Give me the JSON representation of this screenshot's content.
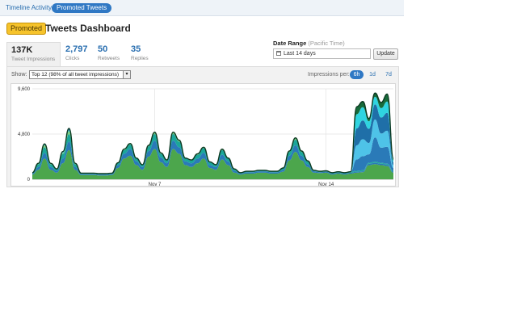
{
  "tabs": {
    "timeline": "Timeline Activity",
    "promoted": "Promoted Tweets"
  },
  "header": {
    "badge": "Promoted",
    "title": "Tweets Dashboard"
  },
  "stats": [
    {
      "value": "137K",
      "label": "Tweet Impressions"
    },
    {
      "value": "2,797",
      "label": "Clicks"
    },
    {
      "value": "50",
      "label": "Retweets"
    },
    {
      "value": "35",
      "label": "Replies"
    }
  ],
  "date_range": {
    "label": "Date Range",
    "timezone": "(Pacific Time)",
    "value": "Last 14 days",
    "update_label": "Update"
  },
  "controls": {
    "show_label": "Show:",
    "show_value": "Top 12 (98% of all tweet impressions)",
    "impressions_per_label": "Impressions per:",
    "periods": [
      "6h",
      "1d",
      "7d"
    ],
    "selected_period": "6h"
  },
  "colors": {
    "accent": "#2f78c4",
    "badge": "#f6c32b",
    "green": "#4ca64c",
    "teal": "#1aa69a",
    "blue": "#2a7ab8",
    "light_blue": "#4ec3e8",
    "cyan": "#2fd4e0",
    "dark_green": "#176b3a"
  },
  "chart_data": {
    "type": "area",
    "stacked": true,
    "ylim": [
      0,
      9600
    ],
    "yticks": [
      "0",
      "4,800",
      "9,600"
    ],
    "xticks": [
      {
        "label": "Nov 7",
        "x": 20
      },
      {
        "label": "Nov 14",
        "x": 48
      }
    ],
    "x": [
      0,
      1,
      2,
      3,
      4,
      5,
      6,
      7,
      8,
      9,
      10,
      11,
      12,
      13,
      14,
      15,
      16,
      17,
      18,
      19,
      20,
      21,
      22,
      23,
      24,
      25,
      26,
      27,
      28,
      29,
      30,
      31,
      32,
      33,
      34,
      35,
      36,
      37,
      38,
      39,
      40,
      41,
      42,
      43,
      44,
      45,
      46,
      47,
      48,
      49,
      50,
      51,
      52,
      53,
      54,
      55,
      56,
      57,
      58,
      59
    ],
    "series": [
      {
        "values": [
          500,
          1000,
          2200,
          1000,
          700,
          1700,
          3100,
          1000,
          450,
          450,
          450,
          400,
          400,
          450,
          1200,
          2200,
          2500,
          1500,
          1000,
          2400,
          3200,
          1800,
          1300,
          3200,
          2700,
          1500,
          1300,
          1700,
          2200,
          1200,
          1000,
          2100,
          1500,
          700,
          500,
          600,
          600,
          700,
          700,
          600,
          600,
          800,
          2000,
          2900,
          2000,
          1300,
          700,
          650,
          700,
          500,
          600,
          500,
          600,
          700,
          750,
          1500,
          1600,
          1500,
          1400,
          700
        ]
      },
      {
        "values": [
          100,
          300,
          600,
          300,
          200,
          500,
          900,
          300,
          100,
          100,
          100,
          100,
          100,
          100,
          300,
          500,
          700,
          400,
          300,
          600,
          900,
          500,
          400,
          900,
          700,
          400,
          400,
          500,
          600,
          300,
          300,
          500,
          400,
          200,
          100,
          150,
          150,
          150,
          150,
          150,
          150,
          200,
          500,
          700,
          500,
          300,
          150,
          100,
          100,
          100,
          100,
          100,
          100,
          100,
          100,
          150,
          150,
          150,
          150,
          100
        ]
      },
      {
        "values": [
          100,
          300,
          600,
          300,
          200,
          500,
          800,
          300,
          100,
          100,
          100,
          100,
          100,
          100,
          200,
          400,
          500,
          300,
          200,
          500,
          700,
          400,
          300,
          700,
          600,
          300,
          300,
          400,
          500,
          300,
          200,
          500,
          300,
          200,
          100,
          100,
          100,
          100,
          100,
          100,
          100,
          200,
          400,
          600,
          400,
          300,
          100,
          100,
          100,
          100,
          100,
          100,
          100,
          100,
          100,
          100,
          100,
          100,
          100,
          100
        ]
      },
      {
        "values": [
          0,
          100,
          200,
          100,
          0,
          100,
          300,
          100,
          0,
          0,
          0,
          0,
          0,
          0,
          50,
          100,
          100,
          50,
          50,
          100,
          200,
          100,
          50,
          200,
          150,
          50,
          50,
          100,
          100,
          50,
          50,
          100,
          50,
          0,
          0,
          0,
          0,
          0,
          0,
          0,
          0,
          0,
          100,
          200,
          100,
          50,
          0,
          0,
          0,
          0,
          0,
          0,
          0,
          0,
          0,
          0,
          0,
          0,
          0,
          0
        ]
      },
      {
        "values": [
          0,
          0,
          50,
          0,
          0,
          50,
          100,
          0,
          0,
          0,
          0,
          0,
          0,
          0,
          0,
          0,
          0,
          0,
          0,
          0,
          0,
          0,
          0,
          0,
          0,
          0,
          0,
          0,
          0,
          0,
          0,
          0,
          0,
          0,
          0,
          0,
          0,
          0,
          0,
          0,
          0,
          0,
          0,
          0,
          0,
          0,
          0,
          0,
          0,
          0,
          0,
          0,
          0,
          0,
          0,
          0,
          0,
          0,
          0,
          0
        ]
      },
      {
        "values": [
          0,
          0,
          100,
          0,
          0,
          100,
          200,
          0,
          0,
          0,
          0,
          0,
          0,
          0,
          0,
          0,
          0,
          0,
          0,
          0,
          0,
          0,
          0,
          0,
          0,
          0,
          0,
          0,
          0,
          0,
          0,
          0,
          0,
          0,
          0,
          0,
          0,
          0,
          0,
          0,
          0,
          0,
          0,
          0,
          0,
          0,
          0,
          0,
          0,
          0,
          0,
          0,
          0,
          1200,
          1500,
          900,
          2600,
          1600,
          1800,
          300
        ]
      },
      {
        "values": [
          0,
          0,
          0,
          0,
          0,
          0,
          0,
          0,
          0,
          0,
          0,
          0,
          0,
          0,
          0,
          0,
          0,
          0,
          0,
          0,
          0,
          0,
          0,
          0,
          0,
          0,
          0,
          0,
          0,
          0,
          0,
          0,
          0,
          0,
          0,
          0,
          0,
          0,
          0,
          0,
          0,
          0,
          0,
          0,
          0,
          0,
          0,
          0,
          0,
          0,
          0,
          0,
          0,
          1500,
          1800,
          1200,
          1900,
          1500,
          1700,
          300
        ]
      },
      {
        "values": [
          0,
          0,
          0,
          0,
          0,
          0,
          0,
          0,
          0,
          0,
          0,
          0,
          0,
          0,
          0,
          0,
          0,
          0,
          0,
          0,
          0,
          0,
          0,
          0,
          0,
          0,
          0,
          0,
          0,
          0,
          0,
          0,
          0,
          0,
          0,
          0,
          0,
          0,
          0,
          0,
          0,
          0,
          0,
          0,
          0,
          0,
          0,
          0,
          0,
          0,
          0,
          0,
          0,
          1800,
          2000,
          1500,
          1600,
          1700,
          1900,
          300
        ]
      },
      {
        "values": [
          0,
          0,
          0,
          0,
          0,
          0,
          0,
          0,
          0,
          0,
          0,
          0,
          0,
          0,
          0,
          0,
          0,
          0,
          0,
          0,
          0,
          0,
          0,
          0,
          0,
          0,
          0,
          0,
          0,
          0,
          0,
          0,
          0,
          0,
          0,
          0,
          0,
          0,
          0,
          0,
          0,
          0,
          0,
          0,
          0,
          0,
          0,
          0,
          0,
          0,
          0,
          0,
          0,
          1500,
          1400,
          800,
          800,
          1000,
          1200,
          200
        ]
      },
      {
        "values": [
          0,
          0,
          0,
          0,
          0,
          0,
          0,
          0,
          0,
          0,
          0,
          0,
          0,
          0,
          0,
          0,
          0,
          0,
          0,
          0,
          0,
          0,
          0,
          0,
          0,
          0,
          0,
          0,
          0,
          0,
          0,
          0,
          0,
          0,
          0,
          0,
          0,
          0,
          0,
          0,
          0,
          0,
          0,
          0,
          0,
          0,
          0,
          0,
          0,
          0,
          0,
          0,
          0,
          800,
          600,
          300,
          400,
          600,
          800,
          200
        ]
      }
    ],
    "series_colors": [
      "#4ca64c",
      "#2a7ab8",
      "#1aa69a",
      "#7fd17f",
      "#2fd4e0",
      "#2a7ab8",
      "#4ec3e8",
      "#1f6fa8",
      "#2fd4e0",
      "#176b3a"
    ]
  }
}
